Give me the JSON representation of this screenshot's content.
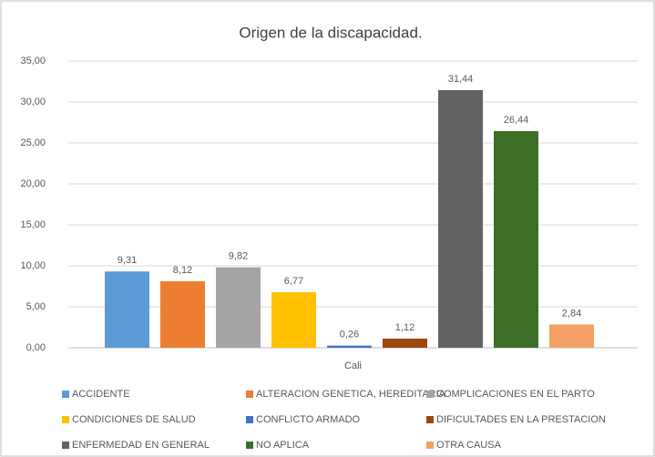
{
  "chart_data": {
    "type": "bar",
    "title": "Origen de la discapacidad.",
    "categories": [
      "Cali"
    ],
    "series": [
      {
        "name": "ACCIDENTE",
        "color": "#5b9bd5",
        "values": [
          9.31
        ],
        "value_labels": [
          "9,31"
        ]
      },
      {
        "name": "ALTERACION GENETICA, HEREDITARIA",
        "color": "#ed7d31",
        "values": [
          8.12
        ],
        "value_labels": [
          "8,12"
        ]
      },
      {
        "name": "COMPLICACIONES EN EL PARTO",
        "color": "#a5a5a5",
        "values": [
          9.82
        ],
        "value_labels": [
          "9,82"
        ]
      },
      {
        "name": "CONDICIONES DE SALUD",
        "color": "#ffc000",
        "values": [
          6.77
        ],
        "value_labels": [
          "6,77"
        ]
      },
      {
        "name": "CONFLICTO ARMADO",
        "color": "#4472c4",
        "values": [
          0.26
        ],
        "value_labels": [
          "0,26"
        ]
      },
      {
        "name": "DIFICULTADES EN LA PRESTACION",
        "color": "#9e480e",
        "values": [
          1.12
        ],
        "value_labels": [
          "1,12"
        ]
      },
      {
        "name": "ENFERMEDAD EN GENERAL",
        "color": "#636363",
        "values": [
          31.44
        ],
        "value_labels": [
          "31,44"
        ]
      },
      {
        "name": "NO APLICA",
        "color": "#3c6e27",
        "values": [
          26.44
        ],
        "value_labels": [
          "26,44"
        ]
      },
      {
        "name": "OTRA CAUSA",
        "color": "#f4a064",
        "values": [
          2.84
        ],
        "value_labels": [
          "2,84"
        ]
      }
    ],
    "ylim": [
      0,
      35
    ],
    "yticks": [
      {
        "value": 0,
        "label": "0,00"
      },
      {
        "value": 5,
        "label": "5,00"
      },
      {
        "value": 10,
        "label": "10,00"
      },
      {
        "value": 15,
        "label": "15,00"
      },
      {
        "value": 20,
        "label": "20,00"
      },
      {
        "value": 25,
        "label": "25,00"
      },
      {
        "value": 30,
        "label": "30,00"
      },
      {
        "value": 35,
        "label": "35,00"
      }
    ],
    "grid": true,
    "legend": "bottom"
  }
}
